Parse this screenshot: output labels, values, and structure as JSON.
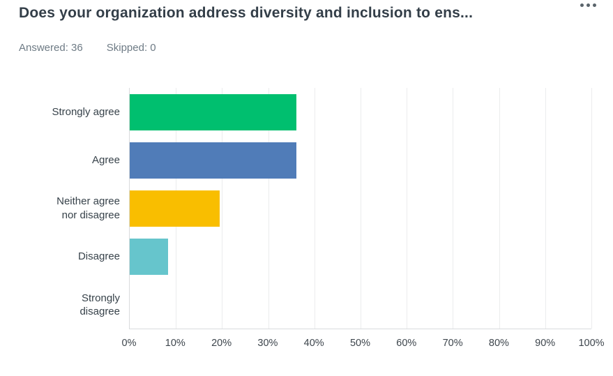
{
  "header": {
    "title": "Does your organization address diversity and inclusion to ens...",
    "answered": "Answered: 36",
    "skipped": "Skipped: 0",
    "menu_icon_name": "ellipsis-menu-icon"
  },
  "colors": {
    "title_text": "#333E48",
    "meta_text": "#6E7B85",
    "axis_line": "#D9DBDD",
    "gridline": "#EBECED"
  },
  "chart_data": {
    "type": "bar",
    "orientation": "horizontal",
    "title": "Does your organization address diversity and inclusion to ens...",
    "categories": [
      "Strongly agree",
      "Agree",
      "Neither agree nor disagree",
      "Disagree",
      "Strongly disagree"
    ],
    "display_labels": [
      "Strongly agree",
      "Agree",
      "Neither agree\nnor disagree",
      "Disagree",
      "Strongly\ndisagree"
    ],
    "values": [
      36.11,
      36.11,
      19.44,
      8.33,
      0
    ],
    "bar_colors": [
      "#00BF6F",
      "#507CB8",
      "#F9BE00",
      "#66C5CC",
      "transparent"
    ],
    "x_ticks": [
      "0%",
      "10%",
      "20%",
      "30%",
      "40%",
      "50%",
      "60%",
      "70%",
      "80%",
      "90%",
      "100%"
    ],
    "xlim": [
      0,
      100
    ],
    "grid": true,
    "legend": "none"
  }
}
